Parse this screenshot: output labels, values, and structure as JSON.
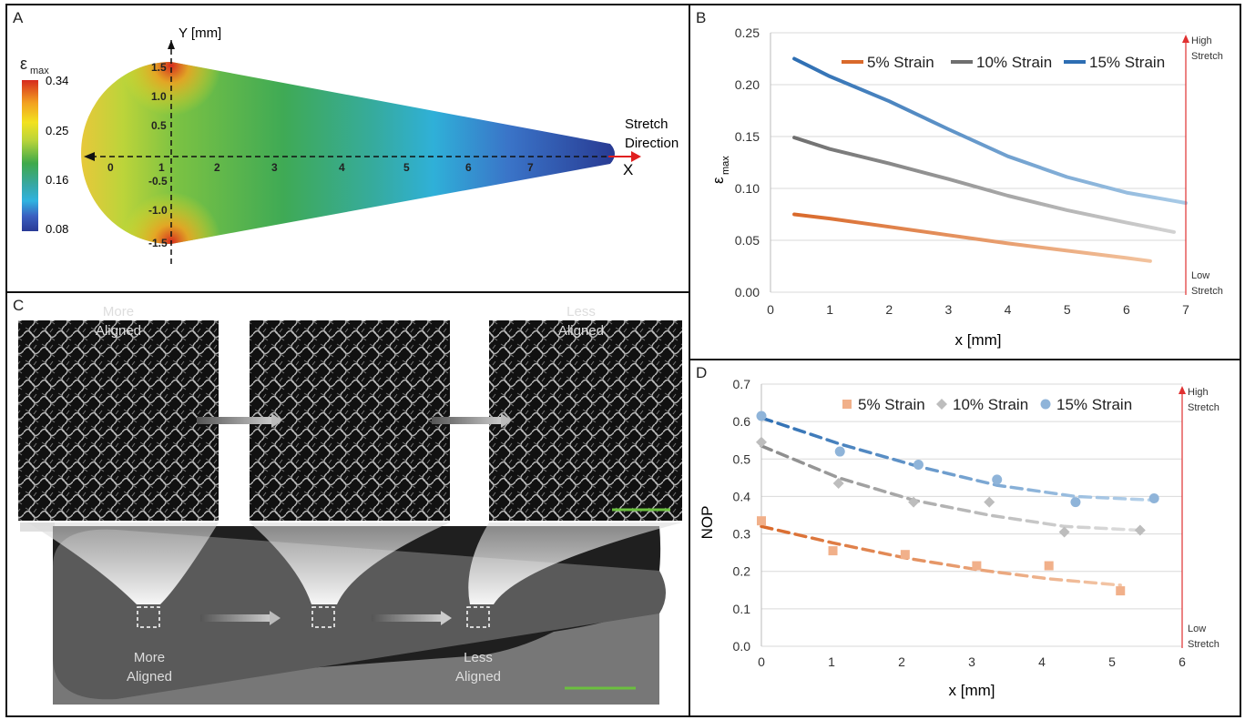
{
  "panels": {
    "A": "A",
    "B": "B",
    "C": "C",
    "D": "D"
  },
  "panel_a": {
    "colorbar_title": "ε",
    "colorbar_sub": "max",
    "colorbar_ticks": [
      "0.34",
      "0.25",
      "0.16",
      "0.08"
    ],
    "y_axis_label": "Y [mm]",
    "x_axis_label": "X",
    "x_ticks": [
      "0",
      "1",
      "2",
      "3",
      "4",
      "5",
      "6",
      "7"
    ],
    "y_ticks": [
      "1.5",
      "1.0",
      "0.5",
      "-0.5",
      "-1.0",
      "-1.5"
    ],
    "stretch_label_1": "Stretch",
    "stretch_label_2": "Direction",
    "colors": {
      "high": "#d62a1e",
      "mid": "#3fa94a",
      "low": "#2a3a96"
    }
  },
  "panel_c": {
    "top_left": "More\nAligned",
    "top_right": "Less\nAligned",
    "bottom_left": "More\nAligned",
    "bottom_right": "Less\nAligned",
    "scale_bar_color": "#6bbf3f"
  },
  "right_axis": {
    "high": "High\nStretch",
    "low": "Low\nStretch"
  },
  "chart_data": [
    {
      "type": "line",
      "panel": "B",
      "xlabel": "x [mm]",
      "ylabel": "ε",
      "ylabel_sub": "max",
      "xlim": [
        0,
        7
      ],
      "ylim": [
        0,
        0.25
      ],
      "xticks": [
        0,
        1,
        2,
        3,
        4,
        5,
        6,
        7
      ],
      "yticks": [
        "0.00",
        "0.05",
        "0.10",
        "0.15",
        "0.20",
        "0.25"
      ],
      "grid": "horizontal",
      "legend": "top",
      "series": [
        {
          "name": "5% Strain",
          "color": "#d9692b",
          "fade": "#f2c39e",
          "x": [
            0.4,
            1,
            2,
            3,
            4,
            5,
            6,
            6.4
          ],
          "values": [
            0.075,
            0.071,
            0.063,
            0.055,
            0.047,
            0.04,
            0.033,
            0.03
          ]
        },
        {
          "name": "10% Strain",
          "color": "#6f6f6f",
          "fade": "#d2d2d2",
          "x": [
            0.4,
            1,
            2,
            3,
            4,
            5,
            6,
            6.8
          ],
          "values": [
            0.149,
            0.138,
            0.124,
            0.109,
            0.093,
            0.079,
            0.067,
            0.058
          ]
        },
        {
          "name": "15% Strain",
          "color": "#2d6eb3",
          "fade": "#a9cbe7",
          "x": [
            0.4,
            1,
            2,
            3,
            4,
            5,
            6,
            7
          ],
          "values": [
            0.225,
            0.208,
            0.184,
            0.157,
            0.131,
            0.111,
            0.096,
            0.086
          ]
        }
      ]
    },
    {
      "type": "scatter",
      "panel": "D",
      "xlabel": "x [mm]",
      "ylabel": "NOP",
      "xlim": [
        0,
        6
      ],
      "ylim": [
        0,
        0.7
      ],
      "xticks": [
        0,
        1,
        2,
        3,
        4,
        5,
        6
      ],
      "yticks": [
        "0.0",
        "0.1",
        "0.2",
        "0.3",
        "0.4",
        "0.5",
        "0.6",
        "0.7"
      ],
      "grid": "horizontal",
      "legend": "top",
      "series": [
        {
          "name": "5% Strain",
          "marker": "square",
          "color": "#f1b08a",
          "line": "#d9692b",
          "fade": "#f3c7a8",
          "x": [
            0,
            1.02,
            2.05,
            3.07,
            4.1,
            5.12
          ],
          "values": [
            0.335,
            0.255,
            0.245,
            0.215,
            0.215,
            0.148
          ],
          "fit": [
            0.32,
            0.276,
            0.236,
            0.205,
            0.18,
            0.163
          ]
        },
        {
          "name": "10% Strain",
          "marker": "diamond",
          "color": "#bdbdbd",
          "line": "#8a8a8a",
          "fade": "#dedede",
          "x": [
            0,
            1.1,
            2.17,
            3.25,
            4.32,
            5.4
          ],
          "values": [
            0.545,
            0.435,
            0.385,
            0.385,
            0.305,
            0.31
          ],
          "fit": [
            0.535,
            0.45,
            0.39,
            0.35,
            0.32,
            0.31
          ]
        },
        {
          "name": "15% Strain",
          "marker": "circle",
          "color": "#8fb4d9",
          "line": "#2d6eb3",
          "fade": "#b8d3eb",
          "x": [
            0,
            1.12,
            2.24,
            3.36,
            4.48,
            5.6
          ],
          "values": [
            0.615,
            0.52,
            0.485,
            0.445,
            0.385,
            0.395
          ],
          "fit": [
            0.61,
            0.54,
            0.48,
            0.43,
            0.4,
            0.39
          ]
        }
      ]
    }
  ]
}
